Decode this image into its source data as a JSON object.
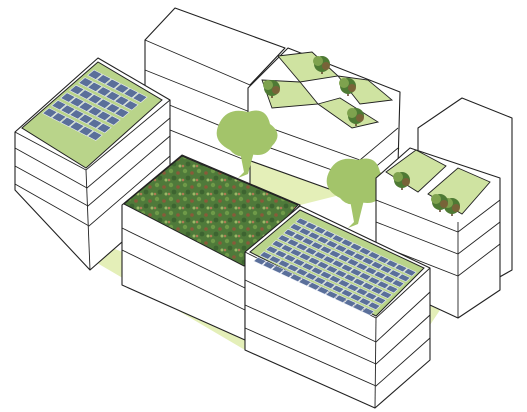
{
  "scene": {
    "description_colors": {
      "ground": "#e4efb8",
      "roof_green": "#b9d48a",
      "roof_lawn": "#cfe3a1",
      "tree_canopy": "#a3c46a",
      "solar_panel": "#5a6f9a",
      "meadow": "#4f7a3a",
      "outline": "#222222"
    },
    "buildings": [
      {
        "id": "left-block",
        "roof": "solar-panels"
      },
      {
        "id": "back-gabled-block",
        "roof": "pitched"
      },
      {
        "id": "back-terrace-block",
        "roof": "green-terraces-with-trees"
      },
      {
        "id": "center-block",
        "roof": "meadow-green-roof"
      },
      {
        "id": "front-block",
        "roof": "solar-panels"
      },
      {
        "id": "right-block",
        "roof": "green-terraces-with-trees"
      }
    ]
  }
}
